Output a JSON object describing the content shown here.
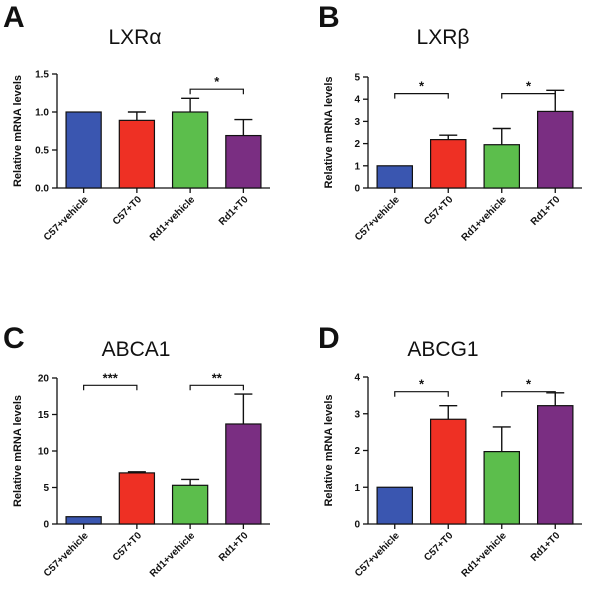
{
  "figure": {
    "panel_letters": [
      "A",
      "B",
      "C",
      "D"
    ]
  },
  "chart_data": [
    {
      "type": "bar",
      "panel": "A",
      "title": "LXRα",
      "ylabel": "Relative mRNA levels",
      "xlabel": "",
      "ylim": [
        0,
        1.5
      ],
      "yticks": [
        0.0,
        0.5,
        1.0,
        1.5
      ],
      "ytick_labels": [
        "0.0",
        "0.5",
        "1.0",
        "1.5"
      ],
      "categories": [
        "C57+vehicle",
        "C57+T0",
        "Rd1+vehicle",
        "Rd1+T0"
      ],
      "values": [
        1.0,
        0.89,
        1.0,
        0.69
      ],
      "errors": [
        0.0,
        0.11,
        0.18,
        0.21
      ],
      "colors": [
        "#3a56b0",
        "#ee3024",
        "#5cbe4c",
        "#7a2e82"
      ],
      "significance": [
        {
          "from": 2,
          "to": 3,
          "level": 1.3,
          "label": "*"
        }
      ]
    },
    {
      "type": "bar",
      "panel": "B",
      "title": "LXRβ",
      "ylabel": "Relative mRNA levels",
      "xlabel": "",
      "ylim": [
        0,
        5
      ],
      "yticks": [
        0,
        1,
        2,
        3,
        4,
        5
      ],
      "ytick_labels": [
        "0",
        "1",
        "2",
        "3",
        "4",
        "5"
      ],
      "categories": [
        "C57+vehicle",
        "C57+T0",
        "Rd1+vehicle",
        "Rd1+T0"
      ],
      "values": [
        1.0,
        2.18,
        1.95,
        3.45
      ],
      "errors": [
        0.0,
        0.2,
        0.73,
        0.95
      ],
      "colors": [
        "#3a56b0",
        "#ee3024",
        "#5cbe4c",
        "#7a2e82"
      ],
      "significance": [
        {
          "from": 0,
          "to": 1,
          "level": 4.25,
          "label": "*"
        },
        {
          "from": 2,
          "to": 3,
          "level": 4.25,
          "label": "*"
        }
      ]
    },
    {
      "type": "bar",
      "panel": "C",
      "title": "ABCA1",
      "ylabel": "Relative mRNA levels",
      "xlabel": "",
      "ylim": [
        0,
        20
      ],
      "yticks": [
        0,
        5,
        10,
        15,
        20
      ],
      "ytick_labels": [
        "0",
        "5",
        "10",
        "15",
        "20"
      ],
      "categories": [
        "C57+vehicle",
        "C57+T0",
        "Rd1+vehicle",
        "Rd1+T0"
      ],
      "values": [
        1.0,
        7.0,
        5.3,
        13.7
      ],
      "errors": [
        0.0,
        0.15,
        0.8,
        4.1
      ],
      "colors": [
        "#3a56b0",
        "#ee3024",
        "#5cbe4c",
        "#7a2e82"
      ],
      "significance": [
        {
          "from": 0,
          "to": 1,
          "level": 19.0,
          "label": "***"
        },
        {
          "from": 2,
          "to": 3,
          "level": 19.0,
          "label": "**"
        }
      ]
    },
    {
      "type": "bar",
      "panel": "D",
      "title": "ABCG1",
      "ylabel": "Relative mRNA levels",
      "xlabel": "",
      "ylim": [
        0,
        4
      ],
      "yticks": [
        0,
        1,
        2,
        3,
        4
      ],
      "ytick_labels": [
        "0",
        "1",
        "2",
        "3",
        "4"
      ],
      "categories": [
        "C57+vehicle",
        "C57+T0",
        "Rd1+vehicle",
        "Rd1+T0"
      ],
      "values": [
        1.0,
        2.85,
        1.97,
        3.22
      ],
      "errors": [
        0.0,
        0.37,
        0.67,
        0.35
      ],
      "colors": [
        "#3a56b0",
        "#ee3024",
        "#5cbe4c",
        "#7a2e82"
      ],
      "significance": [
        {
          "from": 0,
          "to": 1,
          "level": 3.6,
          "label": "*"
        },
        {
          "from": 2,
          "to": 3,
          "level": 3.6,
          "label": "*"
        }
      ]
    }
  ]
}
